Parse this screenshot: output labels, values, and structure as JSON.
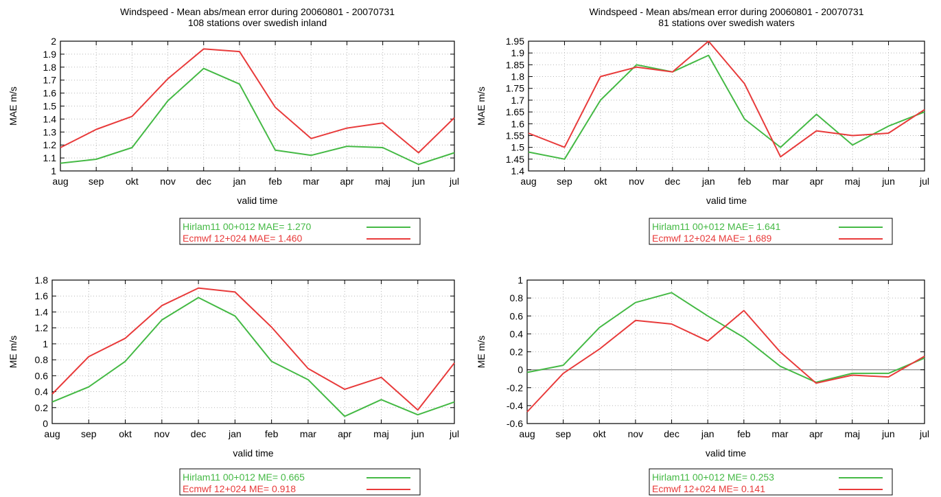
{
  "chart_data": [
    {
      "type": "line",
      "title": "Windspeed - Mean abs/mean error during 20060801 - 20070731",
      "subtitle": "108 stations over swedish inland",
      "xlabel": "valid time",
      "ylabel": "MAE m/s",
      "categories": [
        "aug",
        "sep",
        "okt",
        "nov",
        "dec",
        "jan",
        "feb",
        "mar",
        "apr",
        "maj",
        "jun",
        "jul"
      ],
      "ylim": [
        1,
        2
      ],
      "yticks": [
        "1",
        "1.1",
        "1.2",
        "1.3",
        "1.4",
        "1.5",
        "1.6",
        "1.7",
        "1.8",
        "1.9",
        "2"
      ],
      "grid": true,
      "legend": "below",
      "series": [
        {
          "name": "Hirlam11 00+012 MAE= 1.270",
          "color": "#44b944",
          "values": [
            1.06,
            1.09,
            1.18,
            1.54,
            1.79,
            1.67,
            1.16,
            1.12,
            1.19,
            1.18,
            1.05,
            1.14
          ]
        },
        {
          "name": "Ecmwf 12+024 MAE= 1.460",
          "color": "#e83a3a",
          "values": [
            1.18,
            1.32,
            1.42,
            1.71,
            1.94,
            1.92,
            1.49,
            1.25,
            1.33,
            1.37,
            1.14,
            1.41
          ]
        }
      ]
    },
    {
      "type": "line",
      "title": "Windspeed - Mean abs/mean error during 20060801 - 20070731",
      "subtitle": "81 stations over swedish waters",
      "xlabel": "valid time",
      "ylabel": "MAE m/s",
      "categories": [
        "aug",
        "sep",
        "okt",
        "nov",
        "dec",
        "jan",
        "feb",
        "mar",
        "apr",
        "maj",
        "jun",
        "jul"
      ],
      "ylim": [
        1.4,
        1.95
      ],
      "yticks": [
        "1.4",
        "1.45",
        "1.5",
        "1.55",
        "1.6",
        "1.65",
        "1.7",
        "1.75",
        "1.8",
        "1.85",
        "1.9",
        "1.95"
      ],
      "grid": true,
      "legend": "below",
      "series": [
        {
          "name": "Hirlam11 00+012 MAE= 1.641",
          "color": "#44b944",
          "values": [
            1.48,
            1.45,
            1.7,
            1.85,
            1.82,
            1.89,
            1.62,
            1.5,
            1.64,
            1.51,
            1.59,
            1.65
          ]
        },
        {
          "name": "Ecmwf 12+024 MAE= 1.689",
          "color": "#e83a3a",
          "values": [
            1.56,
            1.5,
            1.8,
            1.84,
            1.82,
            1.95,
            1.77,
            1.46,
            1.57,
            1.55,
            1.56,
            1.66
          ]
        }
      ]
    },
    {
      "type": "line",
      "title": "",
      "subtitle": "",
      "xlabel": "valid time",
      "ylabel": "ME m/s",
      "categories": [
        "aug",
        "sep",
        "okt",
        "nov",
        "dec",
        "jan",
        "feb",
        "mar",
        "apr",
        "maj",
        "jun",
        "jul"
      ],
      "ylim": [
        0,
        1.8
      ],
      "yticks": [
        "0",
        "0.2",
        "0.4",
        "0.6",
        "0.8",
        "1",
        "1.2",
        "1.4",
        "1.6",
        "1.8"
      ],
      "grid": true,
      "legend": "below",
      "series": [
        {
          "name": "Hirlam11 00+012 ME= 0.665",
          "color": "#44b944",
          "values": [
            0.27,
            0.46,
            0.78,
            1.3,
            1.58,
            1.35,
            0.78,
            0.55,
            0.09,
            0.3,
            0.11,
            0.27
          ]
        },
        {
          "name": "Ecmwf 12+024 ME= 0.918",
          "color": "#e83a3a",
          "values": [
            0.37,
            0.84,
            1.07,
            1.48,
            1.7,
            1.65,
            1.21,
            0.69,
            0.43,
            0.58,
            0.17,
            0.76
          ]
        }
      ]
    },
    {
      "type": "line",
      "title": "",
      "subtitle": "",
      "xlabel": "valid time",
      "ylabel": "ME m/s",
      "categories": [
        "aug",
        "sep",
        "okt",
        "nov",
        "dec",
        "jan",
        "feb",
        "mar",
        "apr",
        "maj",
        "jun",
        "jul"
      ],
      "ylim": [
        -0.6,
        1
      ],
      "yticks": [
        "-0.6",
        "-0.4",
        "-0.2",
        "0",
        "0.2",
        "0.4",
        "0.6",
        "0.8",
        "1"
      ],
      "zero_line": true,
      "grid": true,
      "legend": "below",
      "series": [
        {
          "name": "Hirlam11 00+012 ME= 0.253",
          "color": "#44b944",
          "values": [
            -0.03,
            0.05,
            0.47,
            0.75,
            0.86,
            0.6,
            0.36,
            0.04,
            -0.14,
            -0.04,
            -0.04,
            0.13
          ]
        },
        {
          "name": "Ecmwf 12+024 ME= 0.141",
          "color": "#e83a3a",
          "values": [
            -0.47,
            -0.04,
            0.23,
            0.55,
            0.51,
            0.32,
            0.66,
            0.2,
            -0.15,
            -0.06,
            -0.08,
            0.15
          ]
        }
      ]
    }
  ]
}
